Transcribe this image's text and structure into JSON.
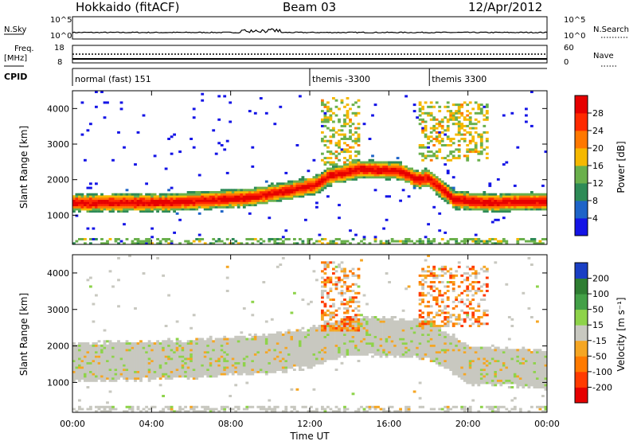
{
  "header": {
    "station": "Hokkaido (fitACF)",
    "beam": "Beam 03",
    "date": "12/Apr/2012"
  },
  "strips": {
    "nsky_label": "N.Sky",
    "nsearch_label": "N.Search",
    "freq_label": "Freq.",
    "freq_unit": "[MHz]",
    "nave_label": "Nave",
    "cpid_label": "CPID",
    "nsky_ticks": [
      "10^5",
      "10^0"
    ],
    "nsearch_ticks": [
      "10^5",
      "10^0"
    ],
    "freq_ticks": [
      "18",
      "8"
    ],
    "nave_ticks": [
      "60",
      "0"
    ],
    "cpid_segments": [
      {
        "label": "normal (fast) 151",
        "start_hour": 0.0
      },
      {
        "label": "themis -3300",
        "start_hour": 12.0
      },
      {
        "label": "themis 3300",
        "start_hour": 18.05
      }
    ]
  },
  "axes": {
    "ylabel_top": "Slant Range [km]",
    "ylabel_bottom": "Slant Range [km]",
    "y_ticks": [
      "1000",
      "2000",
      "3000",
      "4000"
    ],
    "x_ticks": [
      "00:00",
      "04:00",
      "08:00",
      "12:00",
      "16:00",
      "20:00",
      "00:00"
    ],
    "xlabel": "Time UT"
  },
  "colorbars": {
    "power": {
      "title": "Power [dB]",
      "ticks": [
        "4",
        "8",
        "12",
        "16",
        "20",
        "24",
        "28"
      ],
      "colors": [
        "#1414e6",
        "#1e64c8",
        "#2e8b57",
        "#6ab04c",
        "#f5b800",
        "#ff7800",
        "#ff2a00",
        "#e60000"
      ]
    },
    "velocity": {
      "title": "Velocity [m s⁻¹]",
      "ticks": [
        "200",
        "100",
        "50",
        "15",
        "-15",
        "-50",
        "-100",
        "-200"
      ],
      "colors": [
        "#1a3fc4",
        "#2e7d32",
        "#43a047",
        "#8ed34a",
        "#c8c8c0",
        "#f5a623",
        "#ff7a00",
        "#ff3b00",
        "#e60000"
      ]
    }
  },
  "chart_data": [
    {
      "type": "heatmap",
      "title": "",
      "xlabel": "Time UT",
      "ylabel": "Slant Range [km]",
      "xlim": [
        0,
        24
      ],
      "ylim": [
        180,
        4500
      ],
      "value_label": "Power [dB]",
      "value_range": [
        0,
        30
      ],
      "echo_bands": [
        {
          "hours": [
            0,
            5,
            9,
            11,
            12.3,
            13.0,
            14.5,
            16.5,
            17.5,
            18.0,
            19.3,
            21.0,
            24
          ],
          "center_km": [
            1350,
            1360,
            1500,
            1700,
            1850,
            2100,
            2300,
            2250,
            2000,
            2050,
            1450,
            1350,
            1400
          ],
          "half_width_km": 170,
          "peak_db": 27
        }
      ]
    },
    {
      "type": "heatmap",
      "title": "",
      "xlabel": "Time UT",
      "ylabel": "Slant Range [km]",
      "xlim": [
        0,
        24
      ],
      "ylim": [
        180,
        4500
      ],
      "value_label": "Velocity [m s⁻¹]",
      "value_range": [
        -200,
        200
      ],
      "echo_bands": [
        {
          "hours": [
            0,
            6,
            10,
            12,
            14,
            17,
            18,
            20,
            24
          ],
          "center_km": [
            1550,
            1650,
            1800,
            1950,
            2300,
            2200,
            2200,
            1500,
            1350
          ],
          "half_width_km": 350,
          "velocity": 0
        }
      ]
    }
  ]
}
